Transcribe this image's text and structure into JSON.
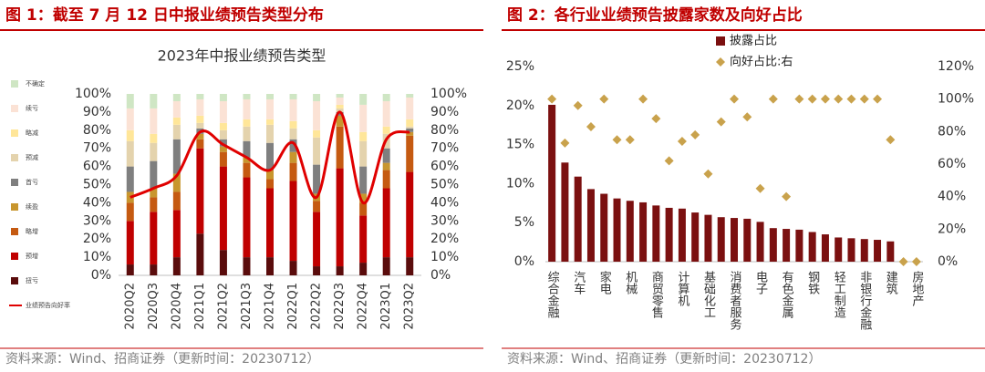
{
  "chart_data": [
    {
      "type": "combo",
      "caption": "图 1：截至 7 月 12 日中报业绩预告类型分布",
      "title": "2023年中报业绩预告类型",
      "source": "资料来源：Wind、招商证券（更新时间：20230712）",
      "stacked": true,
      "categories": [
        "2020Q2",
        "2020Q3",
        "2020Q4",
        "2021Q1",
        "2021Q2",
        "2021Q3",
        "2021Q4",
        "2022Q1",
        "2022Q2",
        "2022Q3",
        "2022Q4",
        "2023Q1",
        "2023Q2"
      ],
      "ylim": [
        0,
        100
      ],
      "yticks": [
        {
          "value": 0,
          "label": "0%"
        },
        {
          "value": 10,
          "label": "10%"
        },
        {
          "value": 20,
          "label": "20%"
        },
        {
          "value": 30,
          "label": "30%"
        },
        {
          "value": 40,
          "label": "40%"
        },
        {
          "value": 50,
          "label": "50%"
        },
        {
          "value": 60,
          "label": "60%"
        },
        {
          "value": 70,
          "label": "70%"
        },
        {
          "value": 80,
          "label": "80%"
        },
        {
          "value": 90,
          "label": "90%"
        },
        {
          "value": 100,
          "label": "100%"
        }
      ],
      "y2lim": [
        0,
        100
      ],
      "y2ticks": [
        {
          "value": 0,
          "label": "0%"
        },
        {
          "value": 10,
          "label": "10%"
        },
        {
          "value": 20,
          "label": "20%"
        },
        {
          "value": 30,
          "label": "30%"
        },
        {
          "value": 40,
          "label": "40%"
        },
        {
          "value": 50,
          "label": "50%"
        },
        {
          "value": 60,
          "label": "60%"
        },
        {
          "value": 70,
          "label": "70%"
        },
        {
          "value": 80,
          "label": "80%"
        },
        {
          "value": 90,
          "label": "90%"
        },
        {
          "value": 100,
          "label": "100%"
        }
      ],
      "legend": "left",
      "series": [
        {
          "name": "扭亏",
          "type": "bar",
          "color": "#5a0c0c",
          "values": [
            6,
            6,
            10,
            23,
            14,
            10,
            10,
            8,
            5,
            5,
            7,
            10,
            10
          ]
        },
        {
          "name": "预增",
          "type": "bar",
          "color": "#c00000",
          "values": [
            24,
            29,
            26,
            47,
            46,
            44,
            38,
            44,
            30,
            54,
            26,
            38,
            47
          ]
        },
        {
          "name": "略增",
          "type": "bar",
          "color": "#c55a11",
          "values": [
            10,
            8,
            10,
            5,
            8,
            8,
            5,
            10,
            6,
            23,
            7,
            10,
            20
          ]
        },
        {
          "name": "续盈",
          "type": "bar",
          "color": "#c8962e",
          "values": [
            6,
            5,
            10,
            3,
            3,
            3,
            5,
            6,
            4,
            6,
            5,
            4,
            2
          ]
        },
        {
          "name": "首亏",
          "type": "bar",
          "color": "#7f7f7f",
          "values": [
            14,
            15,
            19,
            3,
            4,
            9,
            15,
            7,
            16,
            2,
            15,
            8,
            2
          ]
        },
        {
          "name": "预减",
          "type": "bar",
          "color": "#e4d3ad",
          "values": [
            14,
            10,
            8,
            3,
            5,
            8,
            10,
            6,
            15,
            2,
            14,
            8,
            1
          ]
        },
        {
          "name": "略减",
          "type": "bar",
          "color": "#ffe699",
          "values": [
            6,
            5,
            4,
            4,
            4,
            4,
            3,
            4,
            4,
            2,
            5,
            4,
            4
          ]
        },
        {
          "name": "续亏",
          "type": "bar",
          "color": "#fbe2d5",
          "values": [
            12,
            14,
            9,
            9,
            12,
            11,
            11,
            12,
            16,
            4,
            15,
            14,
            12
          ]
        },
        {
          "name": "不确定",
          "type": "bar",
          "color": "#cfe6c4",
          "values": [
            8,
            8,
            4,
            3,
            4,
            3,
            3,
            3,
            4,
            2,
            6,
            4,
            2
          ]
        },
        {
          "name": "业绩预告向好率",
          "type": "line",
          "axis": "y2",
          "color": "#e00000",
          "values": [
            43,
            48,
            55,
            79,
            72,
            65,
            58,
            73,
            43,
            90,
            40,
            75,
            79
          ]
        }
      ]
    },
    {
      "type": "combo",
      "caption": "图 2：各行业业绩预告披露家数及向好占比",
      "source": "资料来源：Wind、招商证券（更新时间：20230712）",
      "stacked": false,
      "categories": [
        "综合金融",
        null,
        "汽车",
        null,
        "家电",
        null,
        "机械",
        null,
        "商贸零售",
        null,
        "计算机",
        null,
        "基础化工",
        null,
        "消费者服务",
        null,
        "电子",
        null,
        "有色金属",
        null,
        "钢铁",
        null,
        "轻工制造",
        null,
        "非银行金融",
        null,
        "建筑",
        null,
        "房地产"
      ],
      "ylim": [
        0,
        25
      ],
      "yticks": [
        {
          "value": 0,
          "label": "0%"
        },
        {
          "value": 5,
          "label": "5%"
        },
        {
          "value": 10,
          "label": "10%"
        },
        {
          "value": 15,
          "label": "15%"
        },
        {
          "value": 20,
          "label": "20%"
        },
        {
          "value": 25,
          "label": "25%"
        }
      ],
      "y2lim": [
        0,
        120
      ],
      "y2ticks": [
        {
          "value": 0,
          "label": "0%"
        },
        {
          "value": 20,
          "label": "20%"
        },
        {
          "value": 40,
          "label": "40%"
        },
        {
          "value": 60,
          "label": "60%"
        },
        {
          "value": 80,
          "label": "80%"
        },
        {
          "value": 100,
          "label": "100%"
        },
        {
          "value": 120,
          "label": "120%"
        }
      ],
      "legend": "top",
      "series": [
        {
          "name": "披露占比",
          "type": "bar",
          "color": "#7b1010",
          "values": [
            20.1,
            12.7,
            10.9,
            9.3,
            8.7,
            8.1,
            7.8,
            7.6,
            7.2,
            6.9,
            6.8,
            6.3,
            6.0,
            5.7,
            5.6,
            5.5,
            5.1,
            4.3,
            4.2,
            4.1,
            3.8,
            3.5,
            3.1,
            3.0,
            2.9,
            2.8,
            2.6,
            0,
            0
          ]
        },
        {
          "name": "向好占比:右",
          "type": "scatter",
          "marker": "diamond",
          "axis": "y2",
          "color": "#c9a24c",
          "values": [
            100,
            73,
            96,
            83,
            100,
            75,
            75,
            100,
            88,
            62,
            74,
            78,
            54,
            86,
            100,
            89,
            45,
            100,
            40,
            100,
            100,
            100,
            100,
            100,
            100,
            100,
            75,
            0,
            0
          ]
        }
      ]
    }
  ]
}
